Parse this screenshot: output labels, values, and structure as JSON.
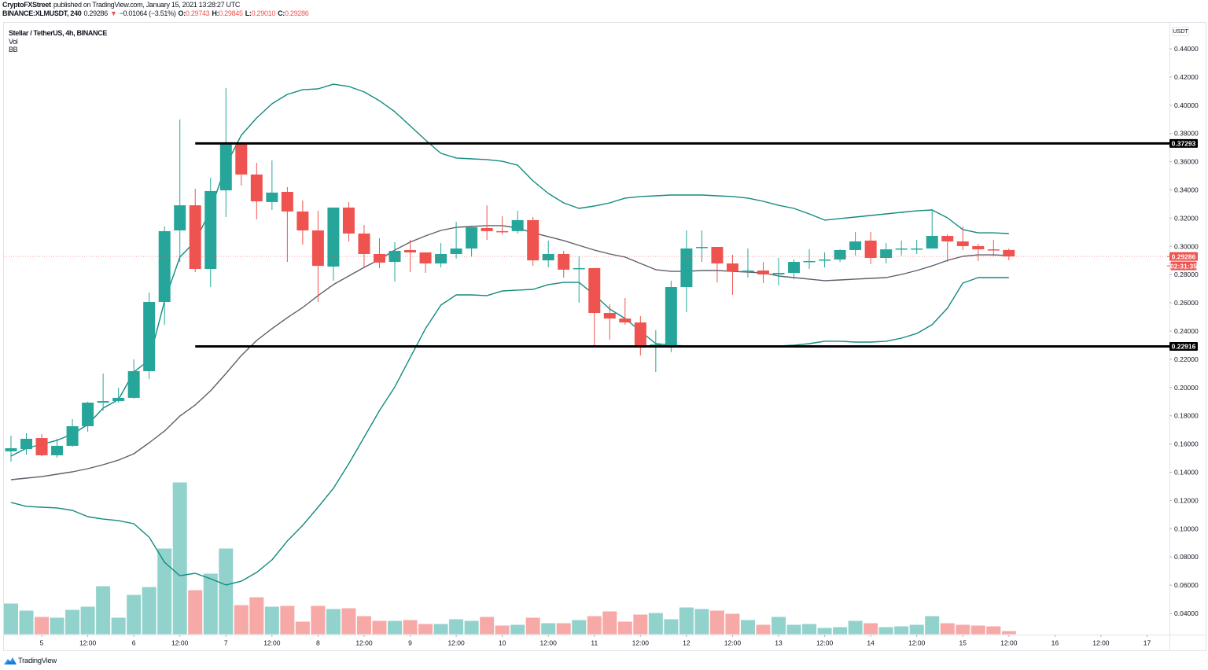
{
  "header": {
    "author": "CryptoFXStreet",
    "published_text": "published on TradingView.com, January 15, 2021 13:28:27 UTC",
    "symbol": "BINANCE:XLMUSDT, 240",
    "last_price": "0.29286",
    "change_arrow": "▼",
    "change": "−0.01064 (−3.51%)",
    "ohlc": [
      {
        "label": "O:",
        "value": "0.29743"
      },
      {
        "label": "H:",
        "value": "0.29845"
      },
      {
        "label": "L:",
        "value": "0.29010"
      },
      {
        "label": "C:",
        "value": "0.29286"
      }
    ]
  },
  "legend": {
    "title": "Stellar / TetherUS, 4h, BINANCE",
    "indicators": [
      "Vol",
      "BB"
    ]
  },
  "price_axis": {
    "currency": "USDT",
    "ticks": [
      "0.44000",
      "0.42000",
      "0.40000",
      "0.38000",
      "0.36000",
      "0.34000",
      "0.32000",
      "0.30000",
      "0.28000",
      "0.26000",
      "0.24000",
      "0.22000",
      "0.20000",
      "0.18000",
      "0.16000",
      "0.14000",
      "0.12000",
      "0.10000",
      "0.08000",
      "0.06000",
      "0.04000"
    ]
  },
  "time_axis": {
    "ticks": [
      "5",
      "12:00",
      "6",
      "12:00",
      "7",
      "12:00",
      "8",
      "12:00",
      "9",
      "12:00",
      "10",
      "12:00",
      "11",
      "12:00",
      "12",
      "12:00",
      "13",
      "12:00",
      "14",
      "12:00",
      "15",
      "12:00",
      "16",
      "12:00",
      "17"
    ]
  },
  "badges": {
    "resistance": {
      "text": "0.37293",
      "price": 0.37293,
      "color": "#000000"
    },
    "last_price": {
      "text": "0.29286",
      "price": 0.29286,
      "color": "#ef5350"
    },
    "countdown": {
      "text": "02:31:35",
      "color": "#ef5350"
    },
    "support": {
      "text": "0.22916",
      "price": 0.22916,
      "color": "#000000"
    }
  },
  "footer": {
    "brand": "TradingView"
  },
  "colors": {
    "up": "#26a69a",
    "down": "#ef5350",
    "vol_up": "rgba(38,166,154,0.5)",
    "vol_down": "rgba(239,83,80,0.5)",
    "bb_band": "#138a80",
    "bb_basis": "#5d606b",
    "level_line": "#000000",
    "brand_blue": "#2196f3"
  },
  "chart_data": {
    "type": "candlestick",
    "title": "Stellar / TetherUS, 4h, BINANCE",
    "symbol": "BINANCE:XLMUSDT",
    "interval": "4h",
    "first_candle": "Jan 4 16:00",
    "last_candle": "Jan 15 12:00",
    "xlabel": "",
    "ylabel": "USDT",
    "ylim": [
      0.025,
      0.458
    ],
    "grid": false,
    "legend_position": "top-left",
    "x_ticks": [
      "5",
      "12:00",
      "6",
      "12:00",
      "7",
      "12:00",
      "8",
      "12:00",
      "9",
      "12:00",
      "10",
      "12:00",
      "11",
      "12:00",
      "12",
      "12:00",
      "13",
      "12:00",
      "14",
      "12:00",
      "15",
      "12:00",
      "16",
      "12:00",
      "17"
    ],
    "y_ticks": [
      0.44,
      0.42,
      0.4,
      0.38,
      0.36,
      0.34,
      0.32,
      0.3,
      0.28,
      0.26,
      0.24,
      0.22,
      0.2,
      0.18,
      0.16,
      0.14,
      0.12,
      0.1,
      0.08,
      0.06,
      0.04
    ],
    "ohlc_fields": [
      "open",
      "high",
      "low",
      "close"
    ],
    "ohlc": [
      [
        0.1548,
        0.1659,
        0.1475,
        0.157
      ],
      [
        0.1564,
        0.1676,
        0.1525,
        0.1637
      ],
      [
        0.1642,
        0.167,
        0.1514,
        0.152
      ],
      [
        0.152,
        0.1637,
        0.1503,
        0.1587
      ],
      [
        0.1587,
        0.1776,
        0.1581,
        0.1726
      ],
      [
        0.1726,
        0.1899,
        0.1687,
        0.1893
      ],
      [
        0.1893,
        0.2099,
        0.1837,
        0.1904
      ],
      [
        0.1904,
        0.1999,
        0.1893,
        0.1927
      ],
      [
        0.1927,
        0.2199,
        0.1921,
        0.2116
      ],
      [
        0.2116,
        0.2673,
        0.206,
        0.2606
      ],
      [
        0.2606,
        0.3141,
        0.2445,
        0.3108
      ],
      [
        0.3113,
        0.3899,
        0.289,
        0.3291
      ],
      [
        0.3291,
        0.3408,
        0.2818,
        0.284
      ],
      [
        0.284,
        0.3486,
        0.2712,
        0.3392
      ],
      [
        0.3397,
        0.4121,
        0.3208,
        0.3726
      ],
      [
        0.3726,
        0.3737,
        0.3431,
        0.3509
      ],
      [
        0.3509,
        0.3592,
        0.3191,
        0.3319
      ],
      [
        0.3314,
        0.3609,
        0.3258,
        0.3381
      ],
      [
        0.3386,
        0.342,
        0.289,
        0.3247
      ],
      [
        0.3247,
        0.3325,
        0.3013,
        0.3113
      ],
      [
        0.3113,
        0.3252,
        0.2606,
        0.2862
      ],
      [
        0.2857,
        0.3275,
        0.2757,
        0.3275
      ],
      [
        0.3275,
        0.3314,
        0.3035,
        0.3091
      ],
      [
        0.3091,
        0.3152,
        0.2851,
        0.2946
      ],
      [
        0.2946,
        0.3057,
        0.2846,
        0.2885
      ],
      [
        0.289,
        0.303,
        0.2751,
        0.2968
      ],
      [
        0.2974,
        0.3046,
        0.2818,
        0.2957
      ],
      [
        0.2957,
        0.2957,
        0.2812,
        0.2879
      ],
      [
        0.2879,
        0.3024,
        0.2851,
        0.2946
      ],
      [
        0.2946,
        0.3174,
        0.2913,
        0.2985
      ],
      [
        0.2985,
        0.3147,
        0.2929,
        0.3135
      ],
      [
        0.313,
        0.3291,
        0.3046,
        0.3108
      ],
      [
        0.3108,
        0.3213,
        0.3085,
        0.3102
      ],
      [
        0.3108,
        0.3252,
        0.3091,
        0.3186
      ],
      [
        0.3186,
        0.3208,
        0.2862,
        0.2901
      ],
      [
        0.2901,
        0.3041,
        0.2851,
        0.2946
      ],
      [
        0.2946,
        0.2968,
        0.2779,
        0.2835
      ],
      [
        0.284,
        0.2929,
        0.2601,
        0.2846
      ],
      [
        0.2846,
        0.2846,
        0.2283,
        0.2528
      ],
      [
        0.2528,
        0.2589,
        0.2339,
        0.2489
      ],
      [
        0.2489,
        0.2634,
        0.2445,
        0.2461
      ],
      [
        0.2461,
        0.2506,
        0.2227,
        0.23
      ],
      [
        0.23,
        0.2406,
        0.211,
        0.2305
      ],
      [
        0.23,
        0.2757,
        0.225,
        0.2712
      ],
      [
        0.2712,
        0.3113,
        0.2534,
        0.2985
      ],
      [
        0.2991,
        0.3113,
        0.289,
        0.2996
      ],
      [
        0.2996,
        0.2996,
        0.2745,
        0.2879
      ],
      [
        0.2879,
        0.294,
        0.2656,
        0.2823
      ],
      [
        0.2818,
        0.2985,
        0.2779,
        0.2829
      ],
      [
        0.2829,
        0.289,
        0.274,
        0.2801
      ],
      [
        0.2801,
        0.2918,
        0.2723,
        0.2812
      ],
      [
        0.2812,
        0.2907,
        0.2768,
        0.289
      ],
      [
        0.289,
        0.2979,
        0.284,
        0.2896
      ],
      [
        0.2901,
        0.2957,
        0.2851,
        0.2907
      ],
      [
        0.2907,
        0.2979,
        0.289,
        0.2974
      ],
      [
        0.2974,
        0.3102,
        0.2935,
        0.3035
      ],
      [
        0.3041,
        0.3102,
        0.2874,
        0.2918
      ],
      [
        0.2918,
        0.3024,
        0.2879,
        0.2979
      ],
      [
        0.2979,
        0.3041,
        0.2935,
        0.2985
      ],
      [
        0.2979,
        0.3046,
        0.2946,
        0.2985
      ],
      [
        0.2985,
        0.3264,
        0.2985,
        0.3074
      ],
      [
        0.3074,
        0.3085,
        0.289,
        0.3035
      ],
      [
        0.3035,
        0.3141,
        0.2974,
        0.3002
      ],
      [
        0.3002,
        0.3018,
        0.2896,
        0.2979
      ],
      [
        0.2979,
        0.3046,
        0.2929,
        0.2974
      ],
      [
        0.29743,
        0.29845,
        0.2901,
        0.29286
      ]
    ],
    "volume_relative": [
      39,
      30,
      22,
      21,
      31,
      35,
      61,
      21,
      50,
      60,
      109,
      193,
      56,
      77,
      109,
      37,
      47,
      35,
      36,
      16,
      36,
      32,
      33,
      23,
      17,
      17,
      18,
      13,
      13,
      19,
      17,
      22,
      11,
      12,
      21,
      14,
      14,
      18,
      23,
      29,
      16,
      25,
      27,
      19,
      34,
      32,
      30,
      26,
      18,
      12,
      22,
      12,
      13,
      8,
      9,
      17,
      14,
      9,
      10,
      12,
      23,
      14,
      12,
      11,
      10,
      4
    ],
    "series": [
      {
        "name": "BB upper",
        "values": [
          0.1514,
          0.157,
          0.1598,
          0.1626,
          0.167,
          0.1737,
          0.1854,
          0.1915,
          0.211,
          0.2194,
          0.2612,
          0.2924,
          0.3035,
          0.3258,
          0.3575,
          0.3787,
          0.391,
          0.401,
          0.4077,
          0.411,
          0.4116,
          0.4149,
          0.4133,
          0.4094,
          0.4032,
          0.3954,
          0.3854,
          0.3754,
          0.3659,
          0.3626,
          0.362,
          0.3615,
          0.3603,
          0.3575,
          0.3464,
          0.3375,
          0.3308,
          0.3269,
          0.3286,
          0.3308,
          0.3342,
          0.3353,
          0.3358,
          0.3364,
          0.3364,
          0.3364,
          0.3358,
          0.3353,
          0.3342,
          0.3319,
          0.3291,
          0.3269,
          0.323,
          0.3186,
          0.3197,
          0.3208,
          0.3219,
          0.323,
          0.3241,
          0.3252,
          0.3258,
          0.3202,
          0.3119,
          0.3096,
          0.3096,
          0.3091
        ]
      },
      {
        "name": "BB basis",
        "values": [
          0.1347,
          0.1358,
          0.1369,
          0.1386,
          0.1403,
          0.1425,
          0.1453,
          0.1486,
          0.1531,
          0.1609,
          0.1692,
          0.1798,
          0.1876,
          0.1977,
          0.2099,
          0.2227,
          0.2333,
          0.2417,
          0.2495,
          0.2567,
          0.2651,
          0.2729,
          0.279,
          0.2851,
          0.2907,
          0.2974,
          0.303,
          0.3074,
          0.3113,
          0.3135,
          0.3141,
          0.3147,
          0.3147,
          0.313,
          0.3096,
          0.3069,
          0.3041,
          0.3007,
          0.2974,
          0.2946,
          0.2924,
          0.2879,
          0.2835,
          0.2823,
          0.2823,
          0.2829,
          0.2829,
          0.2823,
          0.2818,
          0.2812,
          0.279,
          0.2779,
          0.2768,
          0.2757,
          0.2762,
          0.2768,
          0.2773,
          0.2779,
          0.2801,
          0.2829,
          0.2862,
          0.2901,
          0.2929,
          0.294,
          0.294,
          0.2935
        ]
      },
      {
        "name": "BB lower",
        "values": [
          0.1186,
          0.1158,
          0.1152,
          0.1147,
          0.113,
          0.1085,
          0.1068,
          0.1057,
          0.1035,
          0.094,
          0.0762,
          0.0667,
          0.0684,
          0.0645,
          0.0601,
          0.0628,
          0.069,
          0.0779,
          0.0913,
          0.1024,
          0.1152,
          0.1286,
          0.1459,
          0.1648,
          0.1837,
          0.2004,
          0.2211,
          0.2417,
          0.2584,
          0.2656,
          0.2656,
          0.2651,
          0.2684,
          0.269,
          0.2695,
          0.2729,
          0.2745,
          0.2745,
          0.2656,
          0.2556,
          0.2489,
          0.24,
          0.2311,
          0.23,
          0.2294,
          0.2294,
          0.2294,
          0.2289,
          0.2289,
          0.2289,
          0.2294,
          0.23,
          0.2311,
          0.2328,
          0.2328,
          0.2322,
          0.2322,
          0.2328,
          0.235,
          0.2383,
          0.2445,
          0.2562,
          0.274,
          0.2779,
          0.2779,
          0.2779
        ]
      }
    ],
    "horizontal_lines": [
      {
        "price": 0.37293,
        "from_candle": 12
      },
      {
        "price": 0.22916,
        "from_candle": 12
      }
    ],
    "last_price_line": 0.29286
  }
}
